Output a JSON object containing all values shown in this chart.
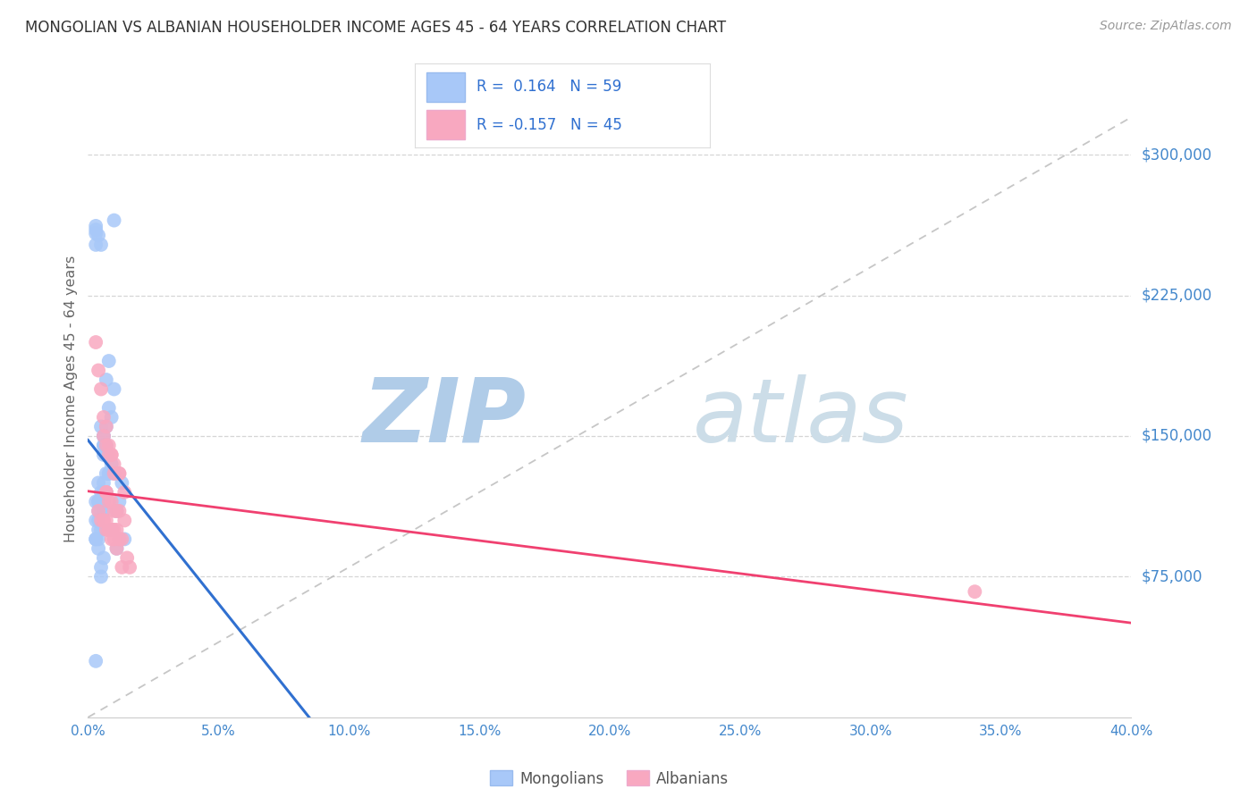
{
  "title": "MONGOLIAN VS ALBANIAN HOUSEHOLDER INCOME AGES 45 - 64 YEARS CORRELATION CHART",
  "source": "Source: ZipAtlas.com",
  "ylabel": "Householder Income Ages 45 - 64 years",
  "ytick_labels": [
    "$75,000",
    "$150,000",
    "$225,000",
    "$300,000"
  ],
  "ytick_values": [
    75000,
    150000,
    225000,
    300000
  ],
  "mongolian_R": 0.164,
  "mongolian_N": 59,
  "albanian_R": -0.157,
  "albanian_N": 45,
  "mongolian_color": "#a8c8f8",
  "albanian_color": "#f8a8c0",
  "mongolian_line_color": "#3070d0",
  "albanian_line_color": "#f04070",
  "ref_line_color": "#b8b8b8",
  "title_color": "#333333",
  "tick_label_color": "#4488cc",
  "watermark_color": "#cce0f0",
  "background_color": "#ffffff",
  "grid_color": "#cccccc",
  "legend_label_1": "Mongolians",
  "legend_label_2": "Albanians",
  "xlim": [
    0.0,
    0.4
  ],
  "ylim": [
    0,
    340000
  ],
  "mongolian_x": [
    0.003,
    0.004,
    0.005,
    0.003,
    0.003,
    0.003,
    0.01,
    0.007,
    0.008,
    0.01,
    0.008,
    0.009,
    0.006,
    0.007,
    0.005,
    0.006,
    0.006,
    0.006,
    0.007,
    0.006,
    0.007,
    0.009,
    0.008,
    0.007,
    0.004,
    0.005,
    0.006,
    0.006,
    0.008,
    0.003,
    0.004,
    0.004,
    0.005,
    0.006,
    0.006,
    0.005,
    0.004,
    0.004,
    0.005,
    0.004,
    0.003,
    0.003,
    0.004,
    0.01,
    0.007,
    0.006,
    0.013,
    0.012,
    0.011,
    0.009,
    0.014,
    0.012,
    0.011,
    0.003,
    0.004,
    0.006,
    0.005,
    0.003,
    0.005
  ],
  "mongolian_y": [
    260000,
    257000,
    252000,
    262000,
    258000,
    252000,
    265000,
    180000,
    190000,
    175000,
    165000,
    160000,
    150000,
    155000,
    155000,
    150000,
    145000,
    145000,
    145000,
    140000,
    140000,
    135000,
    130000,
    130000,
    125000,
    120000,
    120000,
    125000,
    130000,
    115000,
    115000,
    110000,
    115000,
    115000,
    110000,
    110000,
    115000,
    105000,
    100000,
    100000,
    105000,
    95000,
    95000,
    130000,
    120000,
    115000,
    125000,
    115000,
    110000,
    100000,
    95000,
    95000,
    90000,
    95000,
    90000,
    85000,
    80000,
    30000,
    75000
  ],
  "albanian_x": [
    0.003,
    0.004,
    0.005,
    0.006,
    0.007,
    0.008,
    0.009,
    0.01,
    0.012,
    0.006,
    0.007,
    0.008,
    0.009,
    0.01,
    0.012,
    0.014,
    0.007,
    0.008,
    0.009,
    0.01,
    0.011,
    0.012,
    0.014,
    0.006,
    0.007,
    0.008,
    0.009,
    0.01,
    0.011,
    0.012,
    0.013,
    0.004,
    0.005,
    0.006,
    0.007,
    0.008,
    0.009,
    0.01,
    0.011,
    0.013,
    0.015,
    0.016,
    0.34,
    0.007,
    0.009
  ],
  "albanian_y": [
    200000,
    185000,
    175000,
    160000,
    155000,
    145000,
    140000,
    130000,
    130000,
    150000,
    145000,
    140000,
    140000,
    135000,
    130000,
    120000,
    120000,
    115000,
    115000,
    110000,
    110000,
    110000,
    105000,
    105000,
    105000,
    100000,
    100000,
    100000,
    100000,
    95000,
    95000,
    110000,
    105000,
    105000,
    100000,
    100000,
    95000,
    95000,
    90000,
    80000,
    85000,
    80000,
    67000,
    120000,
    100000
  ]
}
